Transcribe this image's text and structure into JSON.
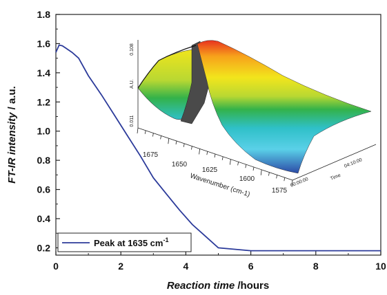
{
  "chart_data": {
    "type": "line",
    "xlabel_italic": "Reaction time",
    "xlabel_plain": " /hours",
    "ylabel_italic": "FT-IR intensity",
    "ylabel_plain": " / a.u.",
    "xlim": [
      0,
      10
    ],
    "ylim": [
      0.15,
      1.8
    ],
    "x_ticks": [
      0,
      2,
      4,
      6,
      8,
      10
    ],
    "y_ticks": [
      0.2,
      0.4,
      0.6,
      0.8,
      1.0,
      1.2,
      1.4,
      1.6,
      1.8
    ],
    "x_tick_labels": [
      "0",
      "2",
      "4",
      "6",
      "8",
      "10"
    ],
    "y_tick_labels": [
      "0.2",
      "0.4",
      "0.6",
      "0.8",
      "1.0",
      "1.2",
      "1.4",
      "1.6",
      "1.8"
    ],
    "series": [
      {
        "name": "Peak at 1635 cm",
        "name_superscript": "-1",
        "color": "#2b3a9a",
        "x": [
          0,
          0.1,
          0.2,
          0.3,
          0.5,
          0.7,
          1.0,
          1.4,
          1.8,
          2.2,
          2.6,
          3.0,
          3.4,
          3.8,
          4.2,
          4.6,
          5.0,
          5.5,
          6.0,
          7.0,
          8.0,
          9.0,
          10.0
        ],
        "y": [
          1.54,
          1.59,
          1.585,
          1.57,
          1.54,
          1.5,
          1.38,
          1.25,
          1.11,
          0.97,
          0.83,
          0.68,
          0.57,
          0.46,
          0.36,
          0.28,
          0.2,
          0.19,
          0.18,
          0.18,
          0.18,
          0.18,
          0.18
        ]
      }
    ],
    "legend_position": "bottom-left",
    "grid": false,
    "inset": {
      "type": "3d-surface",
      "x_label": "Wavenumber (cm-1)",
      "x_tick_labels": [
        "1675",
        "1650",
        "1625",
        "1600",
        "1575"
      ],
      "z_label": "A.U.",
      "z_tick_labels": [
        "0.108",
        "0.011"
      ],
      "time_label": "Time",
      "time_tick_labels": [
        "00:00:00",
        "04:10:00"
      ],
      "colors": [
        "#e8321e",
        "#f7a21b",
        "#f2e51c",
        "#b9d832",
        "#33b24a",
        "#2fc0c8",
        "#5ad0e8",
        "#2c4aa6"
      ]
    }
  }
}
